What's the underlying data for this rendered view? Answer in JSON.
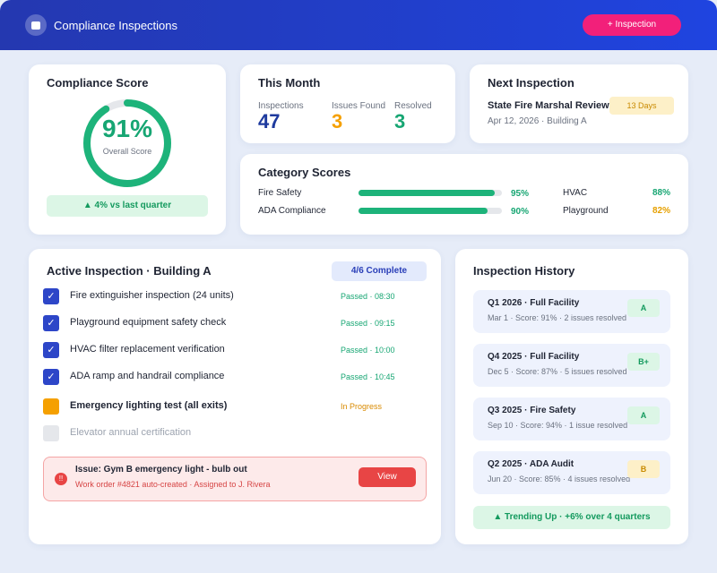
{
  "header": {
    "title": "Compliance Inspections",
    "button": "+ Inspection"
  },
  "compliance": {
    "title": "Compliance Score",
    "score": {
      "value": 91,
      "label": "91%"
    },
    "caption": "Overall Score",
    "trend": "▲ 4% vs last quarter"
  },
  "this_month": {
    "title": "This Month",
    "stats": [
      {
        "label": "Inspections",
        "value": "47"
      },
      {
        "label": "Issues Found",
        "value": "3"
      },
      {
        "label": "Resolved",
        "value": "3"
      }
    ]
  },
  "next_inspection": {
    "title": "Next Inspection",
    "name": "State Fire Marshal Review",
    "badge": "13 Days",
    "details": "Apr 12, 2026 · Building A"
  },
  "category_scores": {
    "title": "Category Scores",
    "bars": [
      {
        "name": "Fire Safety",
        "value": 95,
        "label": "95%"
      },
      {
        "name": "ADA Compliance",
        "value": 90,
        "label": "90%"
      }
    ],
    "others": [
      {
        "name": "HVAC",
        "label": "88%"
      },
      {
        "name": "Playground",
        "label": "82%"
      }
    ]
  },
  "active": {
    "title": "Active Inspection · Building A",
    "badge": "4/6 Complete",
    "items": [
      {
        "text": "Fire extinguisher inspection (24 units)",
        "status": "Passed · 08:30"
      },
      {
        "text": "Playground equipment safety check",
        "status": "Passed · 09:15"
      },
      {
        "text": "HVAC filter replacement verification",
        "status": "Passed · 10:00"
      },
      {
        "text": "ADA ramp and handrail compliance",
        "status": "Passed · 10:45"
      },
      {
        "text": "Emergency lighting test (all exits)",
        "status": "In Progress"
      },
      {
        "text": "Elevator annual certification",
        "status": null
      }
    ],
    "issue": {
      "title": "Issue: Gym B emergency light - bulb out",
      "details": "Work order #4821 auto-created · Assigned to J. Rivera",
      "button": "View"
    }
  },
  "history": {
    "title": "Inspection History",
    "items": [
      {
        "title": "Q1 2026 · Full Facility",
        "details": "Mar 1 · Score: 91% · 2 issues resolved",
        "grade": "A"
      },
      {
        "title": "Q4 2025 · Full Facility",
        "details": "Dec 5 · Score: 87% · 5 issues resolved",
        "grade": "B+"
      },
      {
        "title": "Q3 2025 · Fire Safety",
        "details": "Sep 10 · Score: 94% · 1 issue resolved",
        "grade": "A"
      },
      {
        "title": "Q2 2025 · ADA Audit",
        "details": "Jun 20 · Score: 85% · 4 issues resolved",
        "grade": "B"
      }
    ],
    "trend": "▲ Trending Up · +6% over 4 quarters"
  }
}
